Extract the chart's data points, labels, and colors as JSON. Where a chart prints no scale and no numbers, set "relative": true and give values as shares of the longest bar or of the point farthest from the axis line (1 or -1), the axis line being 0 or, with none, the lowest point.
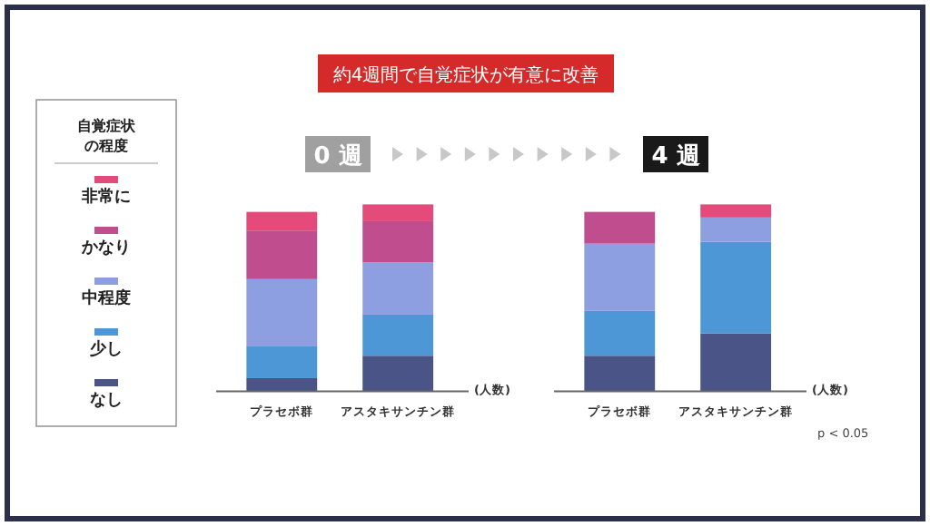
{
  "chart_data": [
    {
      "type": "bar",
      "title": "約4週間で自覚症状が有意に改善",
      "subtitle": "0 週",
      "xlabel": "(人数)",
      "legend_title": "自覚症状の程度",
      "legend": "left",
      "stacked": true,
      "relative": true,
      "categories": [
        "プラセボ群",
        "アスタキサンチン群"
      ],
      "series": [
        {
          "name": "なし",
          "color": "#4a5486",
          "values": [
            0.07,
            0.19
          ]
        },
        {
          "name": "少し",
          "color": "#4e97d6",
          "values": [
            0.17,
            0.22
          ]
        },
        {
          "name": "中程度",
          "color": "#8d9fe0",
          "values": [
            0.36,
            0.28
          ]
        },
        {
          "name": "かなり",
          "color": "#c04d8e",
          "values": [
            0.26,
            0.22
          ]
        },
        {
          "name": "非常に",
          "color": "#e44a7a",
          "values": [
            0.1,
            0.09
          ]
        }
      ]
    },
    {
      "type": "bar",
      "title": "4 週",
      "xlabel": "(人数)",
      "stacked": true,
      "relative": true,
      "annotations": [
        "p < 0.05"
      ],
      "categories": [
        "プラセボ群",
        "アスタキサンチン群"
      ],
      "series": [
        {
          "color": "#4a5486",
          "values": [
            0.19,
            0.31
          ]
        },
        {
          "color": "#4e97d6",
          "values": [
            0.24,
            0.49
          ]
        },
        {
          "color": "#8d9fe0",
          "values": [
            0.36,
            0.13
          ]
        },
        {
          "color": "#c04d8e",
          "values": [
            0.17,
            0
          ]
        },
        {
          "color": "#e44a7a",
          "values": [
            0,
            0.07
          ]
        }
      ]
    }
  ]
}
